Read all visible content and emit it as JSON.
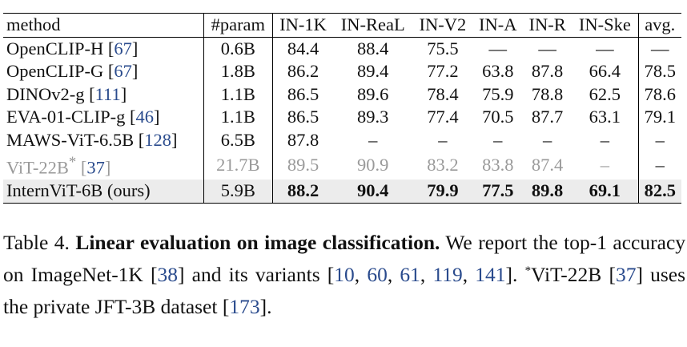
{
  "table": {
    "headers": [
      "method",
      "#param",
      "IN-1K",
      "IN-ReaL",
      "IN-V2",
      "IN-A",
      "IN-R",
      "IN-Ske",
      "avg."
    ],
    "rows": [
      {
        "method": "OpenCLIP-H",
        "cite": "67",
        "param": "0.6B",
        "in1k": "84.4",
        "inreal": "88.4",
        "inv2": "75.5",
        "ina": "—",
        "inr": "—",
        "inske": "—",
        "avg": "—"
      },
      {
        "method": "OpenCLIP-G",
        "cite": "67",
        "param": "1.8B",
        "in1k": "86.2",
        "inreal": "89.4",
        "inv2": "77.2",
        "ina": "63.8",
        "inr": "87.8",
        "inske": "66.4",
        "avg": "78.5"
      },
      {
        "method": "DINOv2-g",
        "cite": "111",
        "param": "1.1B",
        "in1k": "86.5",
        "inreal": "89.6",
        "inv2": "78.4",
        "ina": "75.9",
        "inr": "78.8",
        "inske": "62.5",
        "avg": "78.6"
      },
      {
        "method": "EVA-01-CLIP-g",
        "cite": "46",
        "param": "1.1B",
        "in1k": "86.5",
        "inreal": "89.3",
        "inv2": "77.4",
        "ina": "70.5",
        "inr": "87.7",
        "inske": "63.1",
        "avg": "79.1"
      },
      {
        "method": "MAWS-ViT-6.5B",
        "cite": "128",
        "param": "6.5B",
        "in1k": "87.8",
        "inreal": "–",
        "inv2": "–",
        "ina": "–",
        "inr": "–",
        "inske": "–",
        "avg": "–"
      },
      {
        "method": "ViT-22B",
        "sup": "*",
        "cite": "37",
        "param": "21.7B",
        "in1k": "89.5",
        "inreal": "90.9",
        "inv2": "83.2",
        "ina": "83.8",
        "inr": "87.4",
        "inske": "–",
        "avg": "–"
      },
      {
        "method": "InternViT-6B (ours)",
        "param": "5.9B",
        "in1k": "88.2",
        "inreal": "90.4",
        "inv2": "79.9",
        "ina": "77.5",
        "inr": "89.8",
        "inske": "69.1",
        "avg": "82.5"
      }
    ]
  },
  "caption": {
    "label": "Table 4.",
    "title": "Linear evaluation on image classification.",
    "text1": "We report the top-1 accuracy on ImageNet-1K [",
    "c38": "38",
    "text2": "] and its variants [",
    "c10": "10",
    "c60": "60",
    "c61": "61",
    "c119": "119",
    "c141": "141",
    "text3": "].",
    "star": "*",
    "text4": "ViT-22B [",
    "c37": "37",
    "text5": "] uses the private JFT-3B dataset [",
    "c173": "173",
    "text6": "]."
  }
}
